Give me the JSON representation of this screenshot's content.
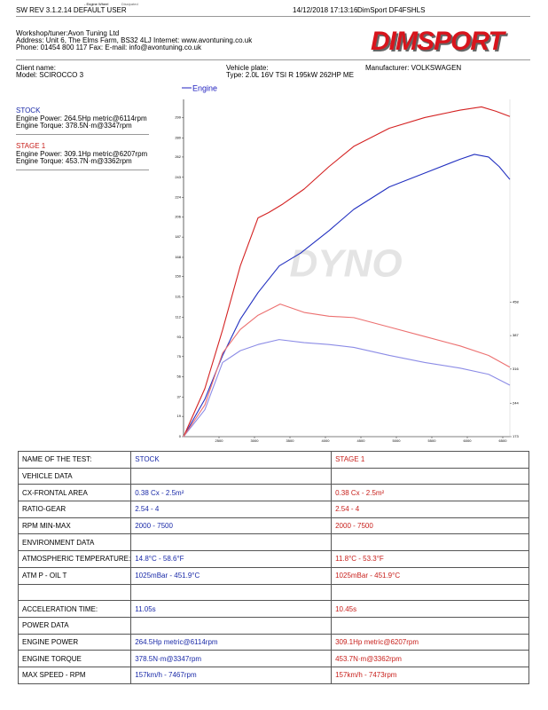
{
  "header": {
    "mode_labels": [
      "- Engine Wheel",
      "Dissipated"
    ],
    "software": "SW REV 3.1.2.14   DEFAULT USER",
    "datetime": "14/12/2018 17:13:16",
    "device": "DimSport DF4FSHLS",
    "workshop": [
      "Workshop/tuner:Avon Tuning Ltd",
      "Address: Unit 6, The Elms Farm, BS32 4LJ Internet: www.avontuning.co.uk",
      "Phone: 01454 800 117 Fax:  E-mail: info@avontuning.co.uk"
    ],
    "logo": "DIMSPORT"
  },
  "vehicle": {
    "client_name": "Client name:",
    "model": "Model: SCIROCCO 3",
    "plate": "Vehicle plate:",
    "type": "Type: 2.0L 16V TSI R 195kW 262HP ME",
    "manufacturer": "Manufacturer: VOLKSWAGEN"
  },
  "summary": [
    {
      "title": "STOCK",
      "lines": [
        "Engine Power: 264.5Hp metric@6114rpm",
        "Engine Torque: 378.5N·m@3347rpm"
      ]
    },
    {
      "title": "STAGE 1",
      "lines": [
        "Engine Power: 309.1Hp metric@6207rpm",
        "Engine Torque: 453.7N·m@3362rpm"
      ]
    }
  ],
  "chart_data": {
    "type": "line",
    "legend": {
      "label": "Engine",
      "color": "#2222c0"
    },
    "watermark": "DYNO",
    "xlim": [
      2000,
      6600
    ],
    "xticks": [
      2500,
      3000,
      3500,
      4000,
      4500,
      5000,
      5500,
      6000,
      6500
    ],
    "ylim": [
      0,
      316
    ],
    "yticks": [
      0,
      19,
      37,
      56,
      75,
      93,
      112,
      131,
      150,
      168,
      187,
      206,
      224,
      243,
      262,
      280,
      299
    ],
    "y2lim": [
      173,
      887
    ],
    "y2ticks": [
      173,
      244,
      316,
      387,
      458
    ],
    "series": [
      {
        "color": "#2230c0",
        "x": [
          2000,
          2300,
          2550,
          2800,
          3050,
          3350,
          3650,
          4050,
          4400,
          4900,
          5400,
          5900,
          6100,
          6300,
          6450,
          6600
        ],
        "values": [
          0,
          35,
          76,
          110,
          135,
          160,
          172,
          193,
          213,
          234,
          247,
          260,
          264.5,
          262,
          253,
          241
        ]
      },
      {
        "color": "#d42222",
        "x": [
          2000,
          2300,
          2550,
          2800,
          3050,
          3200,
          3400,
          3700,
          4050,
          4400,
          4900,
          5400,
          5900,
          6200,
          6400,
          6600
        ],
        "values": [
          0,
          45,
          100,
          160,
          205,
          210,
          218,
          232,
          253,
          272,
          289,
          299,
          306,
          309,
          305,
          300
        ]
      },
      {
        "color": "#8c8ce6",
        "axis": "y2",
        "x": [
          2000,
          2300,
          2550,
          2800,
          3050,
          3347,
          3700,
          4050,
          4400,
          4900,
          5400,
          5900,
          6300,
          6600
        ],
        "values": [
          173,
          230,
          330,
          355,
          368,
          378.5,
          372,
          368,
          362,
          345,
          330,
          318,
          305,
          282
        ]
      },
      {
        "color": "#ec7070",
        "axis": "y2",
        "x": [
          2000,
          2300,
          2550,
          2800,
          3050,
          3362,
          3700,
          4050,
          4400,
          4900,
          5400,
          5900,
          6300,
          6600
        ],
        "values": [
          173,
          240,
          350,
          400,
          430,
          453.7,
          436,
          428,
          425,
          405,
          385,
          365,
          345,
          320
        ]
      }
    ]
  },
  "table": {
    "rows": [
      [
        "NAME OF THE TEST:",
        "STOCK",
        "STAGE 1"
      ],
      [
        "VEHICLE DATA",
        null,
        null
      ],
      [
        "CX-FRONTAL AREA",
        "0.38 Cx - 2.5m²",
        "0.38 Cx - 2.5m²"
      ],
      [
        "RATIO-GEAR",
        "2.54 - 4",
        "2.54 - 4"
      ],
      [
        "RPM MIN-MAX",
        "2000 - 7500",
        "2000 - 7500"
      ],
      [
        "ENVIRONMENT DATA",
        null,
        null
      ],
      [
        "ATMOSPHERIC TEMPERATURE:",
        "14.8°C - 58.6°F",
        "11.8°C - 53.3°F"
      ],
      [
        "ATM P - OIL T",
        "1025mBar - 451.9°C",
        "1025mBar - 451.9°C"
      ],
      [
        null,
        null,
        null
      ],
      [
        "ACCELERATION TIME:",
        "11.05s",
        "10.45s"
      ],
      [
        "POWER DATA",
        null,
        null
      ],
      [
        "ENGINE POWER",
        "264.5Hp metric@6114rpm",
        "309.1Hp metric@6207rpm"
      ],
      [
        "ENGINE TORQUE",
        "378.5N·m@3347rpm",
        "453.7N·m@3362rpm"
      ],
      [
        "MAX SPEED - RPM",
        "157km/h - 7467rpm",
        "157km/h - 7473rpm"
      ]
    ]
  }
}
